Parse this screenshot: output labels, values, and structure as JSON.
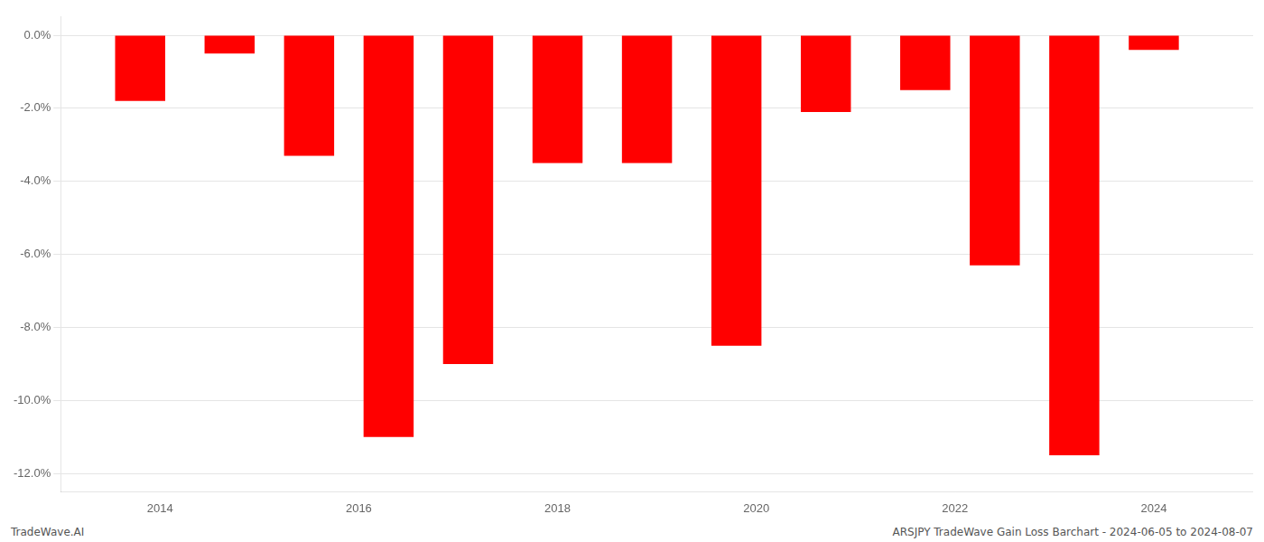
{
  "chart_data": {
    "type": "bar",
    "x": [
      2013.8,
      2014.7,
      2015.5,
      2016.3,
      2017.1,
      2018.0,
      2018.9,
      2019.8,
      2020.7,
      2021.7,
      2022.4,
      2023.2,
      2024.0
    ],
    "values": [
      -1.8,
      -0.5,
      -3.3,
      -11.0,
      -9.0,
      -3.5,
      -3.5,
      -8.5,
      -2.1,
      -1.5,
      -6.3,
      -11.5,
      -0.4
    ],
    "color": "#ff0000",
    "xlim": [
      2013.0,
      2025.0
    ],
    "xticks": [
      2014,
      2016,
      2018,
      2020,
      2022,
      2024
    ],
    "ylim": [
      -12.5,
      0.5
    ],
    "yticks": [
      {
        "value": 0.0,
        "label": "0.0%"
      },
      {
        "value": -2.0,
        "label": "-2.0%"
      },
      {
        "value": -4.0,
        "label": "-4.0%"
      },
      {
        "value": -6.0,
        "label": "-6.0%"
      },
      {
        "value": -8.0,
        "label": "-8.0%"
      },
      {
        "value": -10.0,
        "label": "-10.0%"
      },
      {
        "value": -12.0,
        "label": "-12.0%"
      }
    ],
    "grid": true,
    "annotations": [
      "TradeWave.AI",
      "ARSJPY TradeWave Gain Loss Barchart - 2024-06-05 to 2024-08-07"
    ]
  }
}
